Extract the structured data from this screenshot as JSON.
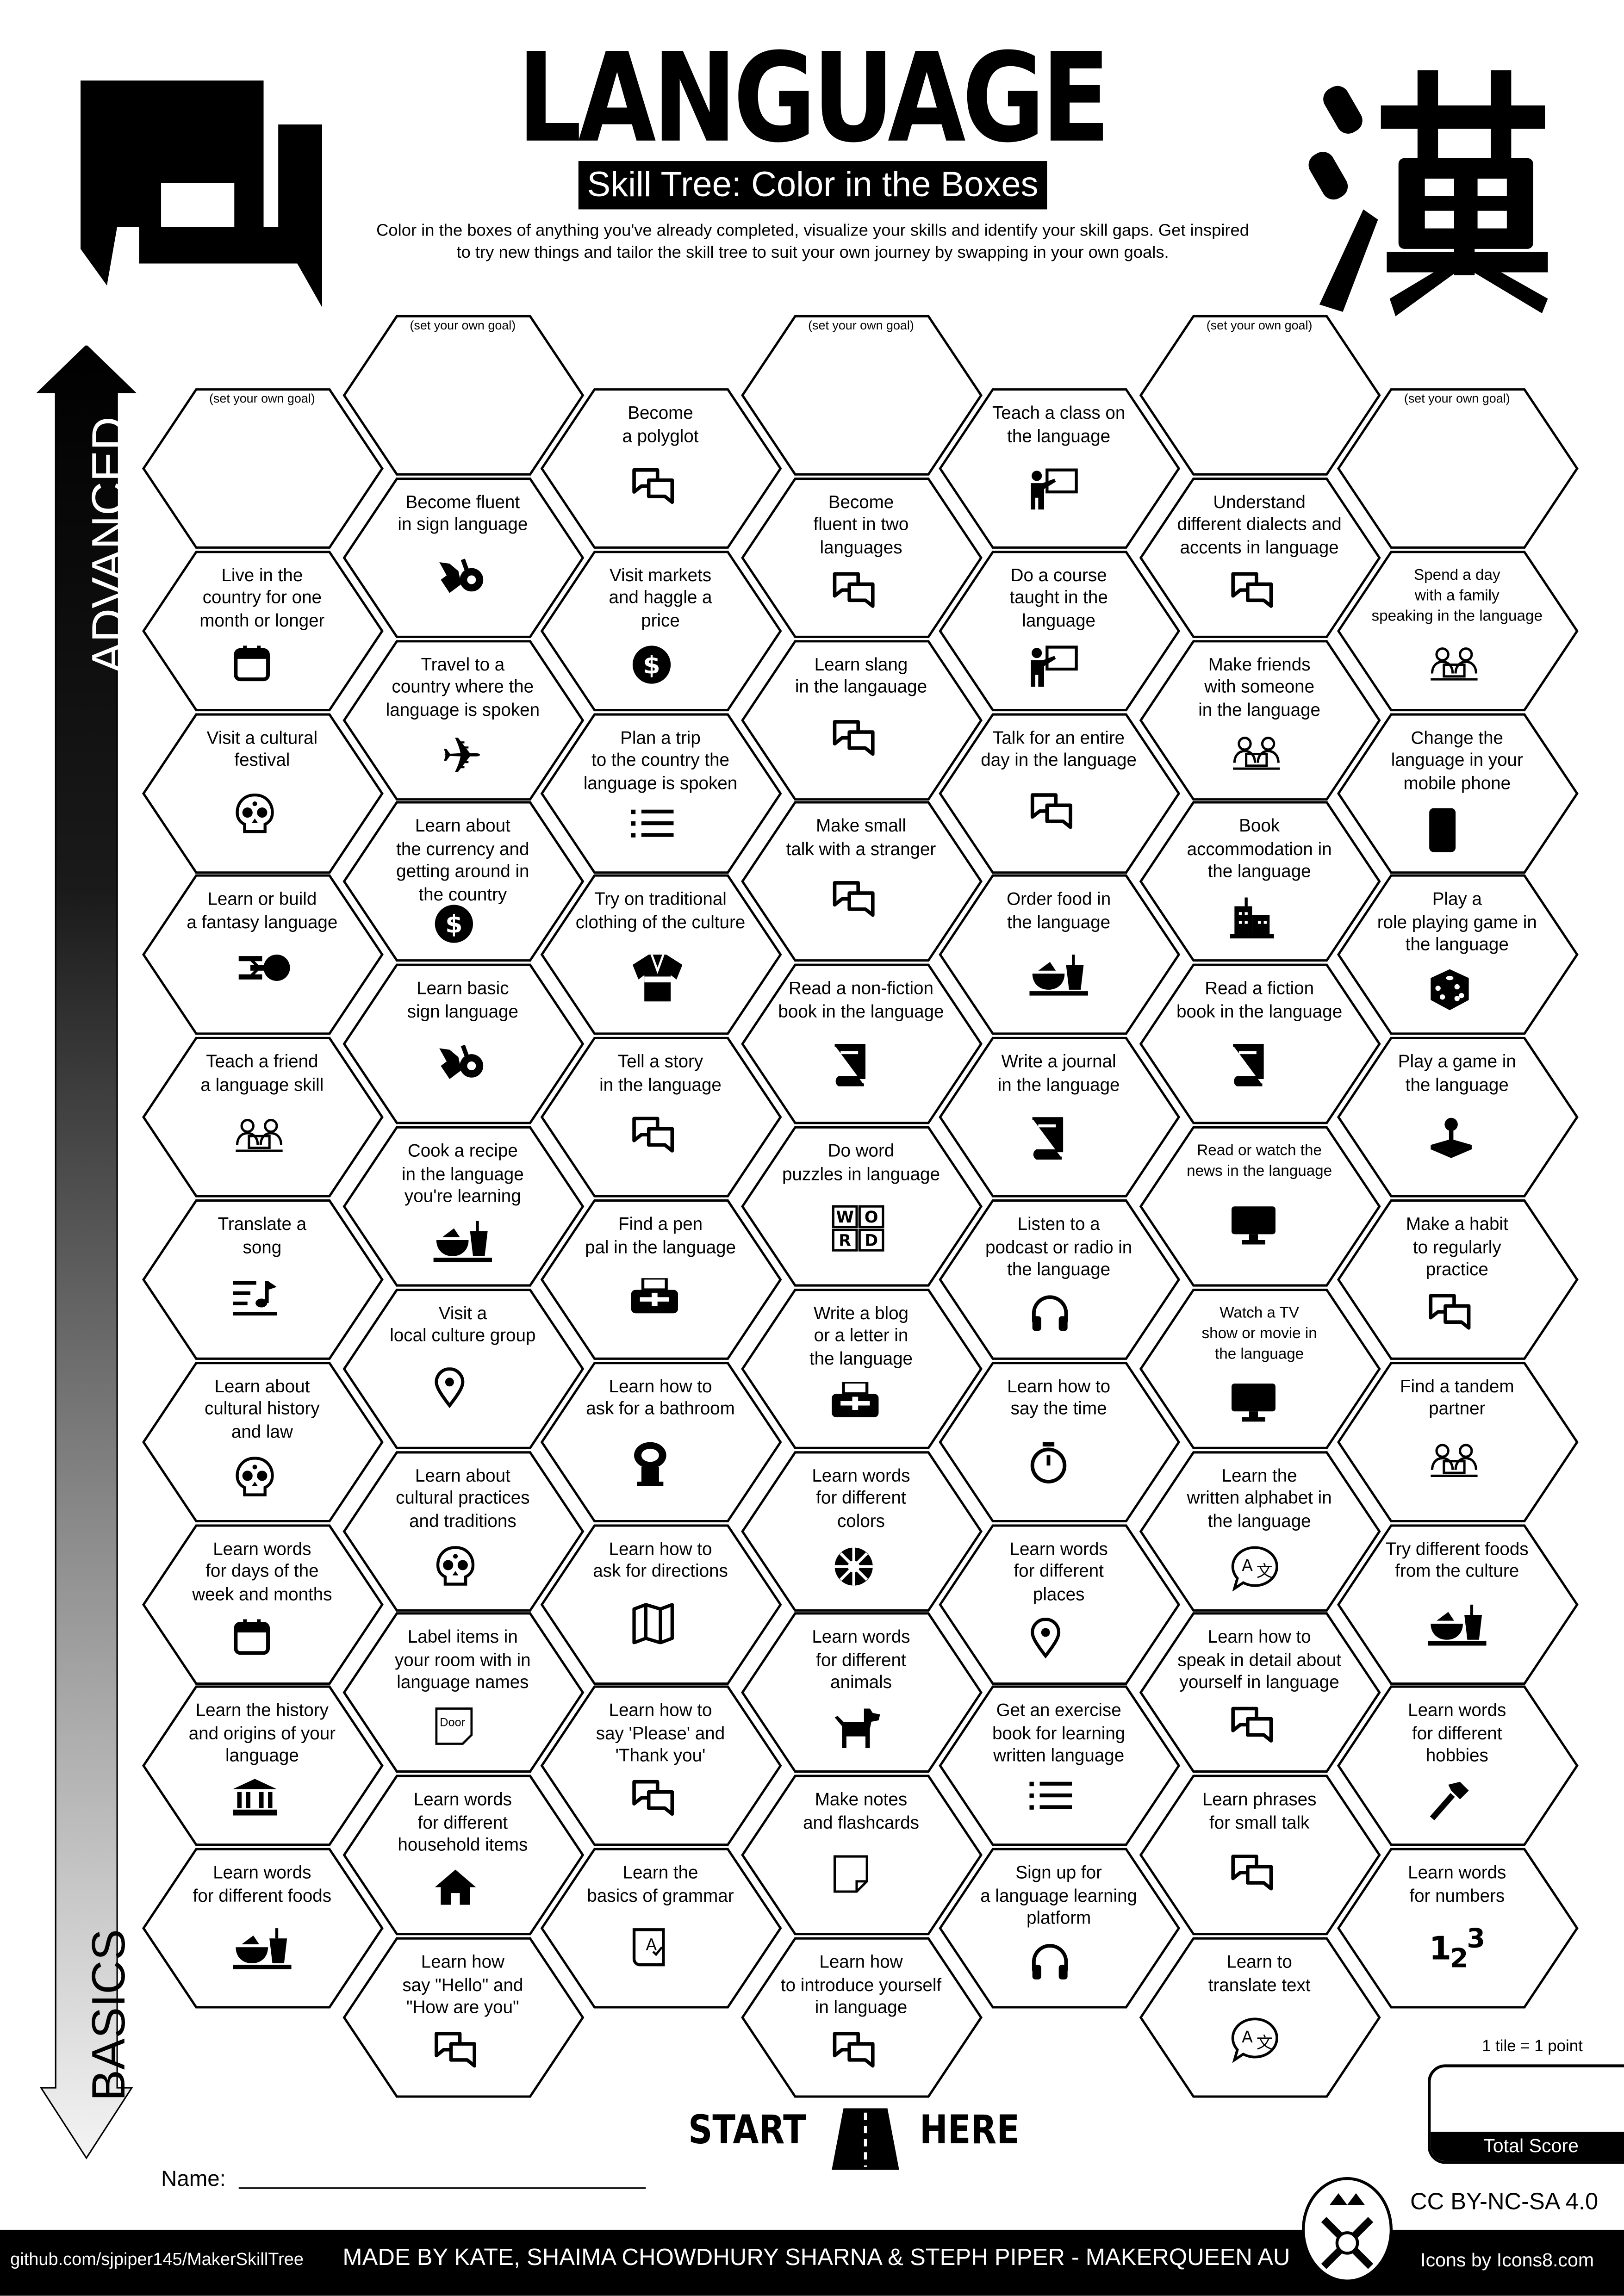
{
  "header": {
    "title": "LANGUAGE",
    "subtitle": "Skill Tree: Color in the Boxes",
    "description": "Color in the boxes of anything you've already completed, visualize your skills and identify your skill gaps.  Get inspired\nto try new things and tailor the skill tree to suit your own journey by swapping in your own goals.",
    "logo_icon": "chat-bubbles-icon",
    "kanji": "漢"
  },
  "axis": {
    "top_label": "ADVANCED",
    "bottom_label": "BASICS"
  },
  "goal_label": "(set your own goal)",
  "columns": [
    [
      {
        "goal": true
      },
      {
        "text": "Live in the\ncountry for one\nmonth or longer",
        "icon": "calendar"
      },
      {
        "text": "Visit a cultural\nfestival",
        "icon": "skull"
      },
      {
        "text": "Learn or build\na fantasy language",
        "icon": "starship"
      },
      {
        "text": "Teach a friend\na language skill",
        "icon": "video-call"
      },
      {
        "text": "Translate a\nsong",
        "icon": "music"
      },
      {
        "text": "Learn about\ncultural history\nand law",
        "icon": "skull"
      },
      {
        "text": "Learn words\nfor days of the\nweek and months",
        "icon": "calendar"
      },
      {
        "text": "Learn the history\nand origins of your\nlanguage",
        "icon": "museum"
      },
      {
        "text": "Learn words\nfor different foods",
        "icon": "food"
      }
    ],
    [
      {
        "goal": true
      },
      {
        "text": "Become fluent\nin sign language",
        "icon": "sign-language"
      },
      {
        "text": "Travel to a\ncountry where the\nlanguage is spoken",
        "icon": "plane"
      },
      {
        "text": "Learn about\nthe currency and\ngetting around in\nthe country",
        "icon": "dollar"
      },
      {
        "text": "Learn basic\nsign language",
        "icon": "sign-language"
      },
      {
        "text": "Cook a recipe\nin the language\nyou're learning",
        "icon": "food"
      },
      {
        "text": "Visit a\nlocal culture group",
        "icon": "map-pin"
      },
      {
        "text": "Learn about\ncultural practices\nand traditions",
        "icon": "skull"
      },
      {
        "text": "Label items in\nyour room with in\nlanguage names",
        "icon": "door-note",
        "icon_text": "Door"
      },
      {
        "text": "Learn words\nfor different\nhousehold items",
        "icon": "home"
      },
      {
        "text": "Learn how\nsay \"Hello\" and\n\"How are you\"",
        "icon": "chat"
      }
    ],
    [
      {
        "text": "Become\na polyglot",
        "icon": "chat"
      },
      {
        "text": "Visit markets\nand haggle a\nprice",
        "icon": "dollar"
      },
      {
        "text": "Plan a trip\nto the country the\nlanguage is spoken",
        "icon": "list"
      },
      {
        "text": "Try on traditional\nclothing of the culture",
        "icon": "kimono"
      },
      {
        "text": "Tell a story\nin the language",
        "icon": "chat"
      },
      {
        "text": "Find a pen\npal in the language",
        "icon": "fax"
      },
      {
        "text": "Learn how to\nask for a bathroom",
        "icon": "toilet"
      },
      {
        "text": "Learn how to\nask for directions",
        "icon": "map"
      },
      {
        "text": "Learn how to\nsay 'Please' and\n'Thank you'",
        "icon": "chat"
      },
      {
        "text": "Learn the\nbasics of grammar",
        "icon": "grammar"
      }
    ],
    [
      {
        "goal": true
      },
      {
        "text": "Become\nfluent in two\nlanguages",
        "icon": "chat"
      },
      {
        "text": "Learn slang\nin the langauage",
        "icon": "chat"
      },
      {
        "text": "Make small\ntalk with a stranger",
        "icon": "chat"
      },
      {
        "text": "Read a non-fiction\nbook in the language",
        "icon": "book"
      },
      {
        "text": "Do word\npuzzles in language",
        "icon": "word-blocks"
      },
      {
        "text": "Write a blog\nor a letter in\nthe language",
        "icon": "fax"
      },
      {
        "text": "Learn words\nfor different\ncolors",
        "icon": "palette"
      },
      {
        "text": "Learn words\nfor different\nanimals",
        "icon": "dog"
      },
      {
        "text": "Make notes\nand flashcards",
        "icon": "note"
      },
      {
        "text": "Learn how\nto introduce yourself\nin language",
        "icon": "chat"
      }
    ],
    [
      {
        "text": "Teach a class on\nthe language",
        "icon": "teacher"
      },
      {
        "text": "Do a course\ntaught in the\nlanguage",
        "icon": "teacher"
      },
      {
        "text": "Talk for an entire\nday in the language",
        "icon": "chat"
      },
      {
        "text": "Order food in\nthe language",
        "icon": "food"
      },
      {
        "text": "Write a journal\nin the language",
        "icon": "book"
      },
      {
        "text": "Listen to a\npodcast or radio in\nthe language",
        "icon": "headphones"
      },
      {
        "text": "Learn how to\nsay the time",
        "icon": "timer"
      },
      {
        "text": "Learn words\nfor different\nplaces",
        "icon": "map-pin"
      },
      {
        "text": "Get an exercise\nbook for learning\nwritten language",
        "icon": "list"
      },
      {
        "text": "Sign up for\na language learning\nplatform",
        "icon": "headphones"
      }
    ],
    [
      {
        "goal": true
      },
      {
        "text": "Understand\ndifferent dialects and\naccents in language",
        "icon": "chat"
      },
      {
        "text": "Make friends\nwith someone\nin the language",
        "icon": "video-call"
      },
      {
        "text": "Book\naccommodation in\nthe language",
        "icon": "building"
      },
      {
        "text": "Read a fiction\nbook in the language",
        "icon": "book"
      },
      {
        "text": "Read or watch the\nnews in the language",
        "icon": "monitor",
        "small": true
      },
      {
        "text": "Watch a TV\nshow or movie in\nthe language",
        "icon": "monitor",
        "small": true
      },
      {
        "text": "Learn the\nwritten alphabet in\nthe language",
        "icon": "translate"
      },
      {
        "text": "Learn how to\nspeak in detail about\nyourself in language",
        "icon": "chat"
      },
      {
        "text": "Learn phrases\nfor small talk",
        "icon": "chat"
      },
      {
        "text": "Learn to\ntranslate text",
        "icon": "translate"
      }
    ],
    [
      {
        "goal": true
      },
      {
        "text": "Spend a day\nwith a family\nspeaking in the language",
        "icon": "video-call",
        "small": true
      },
      {
        "text": "Change the\nlanguage in your\nmobile phone",
        "icon": "phone"
      },
      {
        "text": "Play a\nrole playing game in\nthe language",
        "icon": "dice"
      },
      {
        "text": "Play a game in\nthe language",
        "icon": "joystick"
      },
      {
        "text": "Make a habit\nto regularly\npractice",
        "icon": "chat"
      },
      {
        "text": "Find a tandem\npartner",
        "icon": "video-call"
      },
      {
        "text": "Try different foods\nfrom the culture",
        "icon": "food"
      },
      {
        "text": "Learn words\nfor different\nhobbies",
        "icon": "hammer"
      },
      {
        "text": "Learn words\nfor numbers",
        "icon": "numbers",
        "icon_text": "123"
      }
    ]
  ],
  "start": {
    "left": "START",
    "right": "HERE",
    "icon": "road-icon"
  },
  "name_label": "Name:",
  "score": {
    "rule": "1 tile = 1 point",
    "label": "Total Score",
    "value": ""
  },
  "license": "CC BY-NC-SA 4.0",
  "footer": {
    "repo": "github.com/sjpiper145/MakerSkillTree",
    "credits": "MADE BY KATE, SHAIMA CHOWDHURY SHARNA & STEPH PIPER  -  MAKERQUEEN AU",
    "icons_credit": "Icons by Icons8.com",
    "badge_icon": "makerqueen-crest-icon"
  }
}
